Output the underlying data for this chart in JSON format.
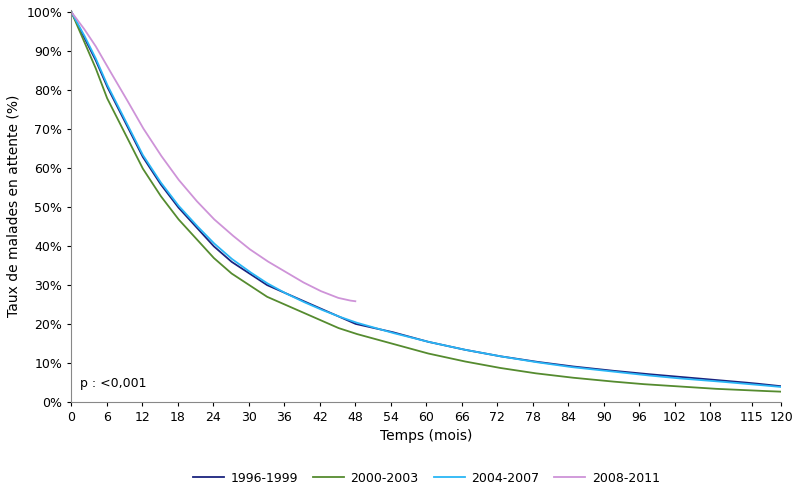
{
  "title": "",
  "xlabel": "Temps (mois)",
  "ylabel": "Taux de malades en attente (%)",
  "annotation": "p : <0,001",
  "xlim": [
    0,
    120
  ],
  "ylim": [
    0,
    1.005
  ],
  "xticks": [
    0,
    6,
    12,
    18,
    24,
    30,
    36,
    42,
    48,
    54,
    60,
    66,
    72,
    78,
    84,
    90,
    96,
    102,
    108,
    115,
    120
  ],
  "yticks": [
    0.0,
    0.1,
    0.2,
    0.3,
    0.4,
    0.5,
    0.6,
    0.7,
    0.8,
    0.9,
    1.0
  ],
  "series": [
    {
      "label": "1996-1999",
      "color": "#1a237e",
      "linewidth": 1.3
    },
    {
      "label": "2000-2003",
      "color": "#558b2f",
      "linewidth": 1.3
    },
    {
      "label": "2004-2007",
      "color": "#29b6f6",
      "linewidth": 1.3
    },
    {
      "label": "2008-2011",
      "color": "#ce93d8",
      "linewidth": 1.3
    }
  ],
  "kp_1996": [
    [
      0,
      1.0
    ],
    [
      2,
      0.94
    ],
    [
      4,
      0.88
    ],
    [
      6,
      0.81
    ],
    [
      9,
      0.72
    ],
    [
      12,
      0.63
    ],
    [
      15,
      0.56
    ],
    [
      18,
      0.5
    ],
    [
      21,
      0.45
    ],
    [
      24,
      0.4
    ],
    [
      27,
      0.36
    ],
    [
      30,
      0.33
    ],
    [
      33,
      0.3
    ],
    [
      36,
      0.28
    ],
    [
      39,
      0.26
    ],
    [
      42,
      0.24
    ],
    [
      45,
      0.22
    ],
    [
      48,
      0.2
    ],
    [
      54,
      0.18
    ],
    [
      60,
      0.155
    ],
    [
      66,
      0.135
    ],
    [
      72,
      0.118
    ],
    [
      78,
      0.104
    ],
    [
      84,
      0.092
    ],
    [
      90,
      0.082
    ],
    [
      96,
      0.073
    ],
    [
      102,
      0.065
    ],
    [
      108,
      0.057
    ],
    [
      115,
      0.048
    ],
    [
      120,
      0.04
    ]
  ],
  "kp_2000": [
    [
      0,
      1.0
    ],
    [
      2,
      0.93
    ],
    [
      4,
      0.86
    ],
    [
      6,
      0.78
    ],
    [
      9,
      0.69
    ],
    [
      12,
      0.6
    ],
    [
      15,
      0.53
    ],
    [
      18,
      0.47
    ],
    [
      21,
      0.42
    ],
    [
      24,
      0.37
    ],
    [
      27,
      0.33
    ],
    [
      30,
      0.3
    ],
    [
      33,
      0.27
    ],
    [
      36,
      0.25
    ],
    [
      39,
      0.23
    ],
    [
      42,
      0.21
    ],
    [
      45,
      0.19
    ],
    [
      48,
      0.175
    ],
    [
      54,
      0.15
    ],
    [
      60,
      0.125
    ],
    [
      66,
      0.105
    ],
    [
      72,
      0.088
    ],
    [
      78,
      0.074
    ],
    [
      84,
      0.063
    ],
    [
      90,
      0.054
    ],
    [
      96,
      0.046
    ],
    [
      102,
      0.04
    ],
    [
      108,
      0.034
    ],
    [
      115,
      0.029
    ],
    [
      120,
      0.026
    ]
  ],
  "kp_2004": [
    [
      0,
      1.0
    ],
    [
      2,
      0.945
    ],
    [
      4,
      0.885
    ],
    [
      6,
      0.815
    ],
    [
      9,
      0.725
    ],
    [
      12,
      0.635
    ],
    [
      15,
      0.565
    ],
    [
      18,
      0.505
    ],
    [
      21,
      0.455
    ],
    [
      24,
      0.408
    ],
    [
      27,
      0.368
    ],
    [
      30,
      0.335
    ],
    [
      33,
      0.305
    ],
    [
      36,
      0.28
    ],
    [
      39,
      0.258
    ],
    [
      42,
      0.238
    ],
    [
      45,
      0.22
    ],
    [
      48,
      0.204
    ],
    [
      54,
      0.178
    ],
    [
      60,
      0.155
    ],
    [
      66,
      0.135
    ],
    [
      72,
      0.118
    ],
    [
      78,
      0.103
    ],
    [
      84,
      0.09
    ],
    [
      90,
      0.08
    ],
    [
      96,
      0.07
    ],
    [
      102,
      0.061
    ],
    [
      108,
      0.054
    ],
    [
      115,
      0.045
    ],
    [
      120,
      0.038
    ]
  ],
  "kp_2008": [
    [
      0,
      1.0
    ],
    [
      2,
      0.96
    ],
    [
      4,
      0.915
    ],
    [
      6,
      0.862
    ],
    [
      9,
      0.785
    ],
    [
      12,
      0.705
    ],
    [
      15,
      0.635
    ],
    [
      18,
      0.572
    ],
    [
      21,
      0.518
    ],
    [
      24,
      0.47
    ],
    [
      27,
      0.43
    ],
    [
      30,
      0.393
    ],
    [
      33,
      0.362
    ],
    [
      36,
      0.335
    ],
    [
      39,
      0.308
    ],
    [
      42,
      0.285
    ],
    [
      45,
      0.267
    ],
    [
      47,
      0.26
    ],
    [
      48,
      0.258
    ]
  ],
  "figsize": [
    8.0,
    4.9
  ],
  "dpi": 100
}
